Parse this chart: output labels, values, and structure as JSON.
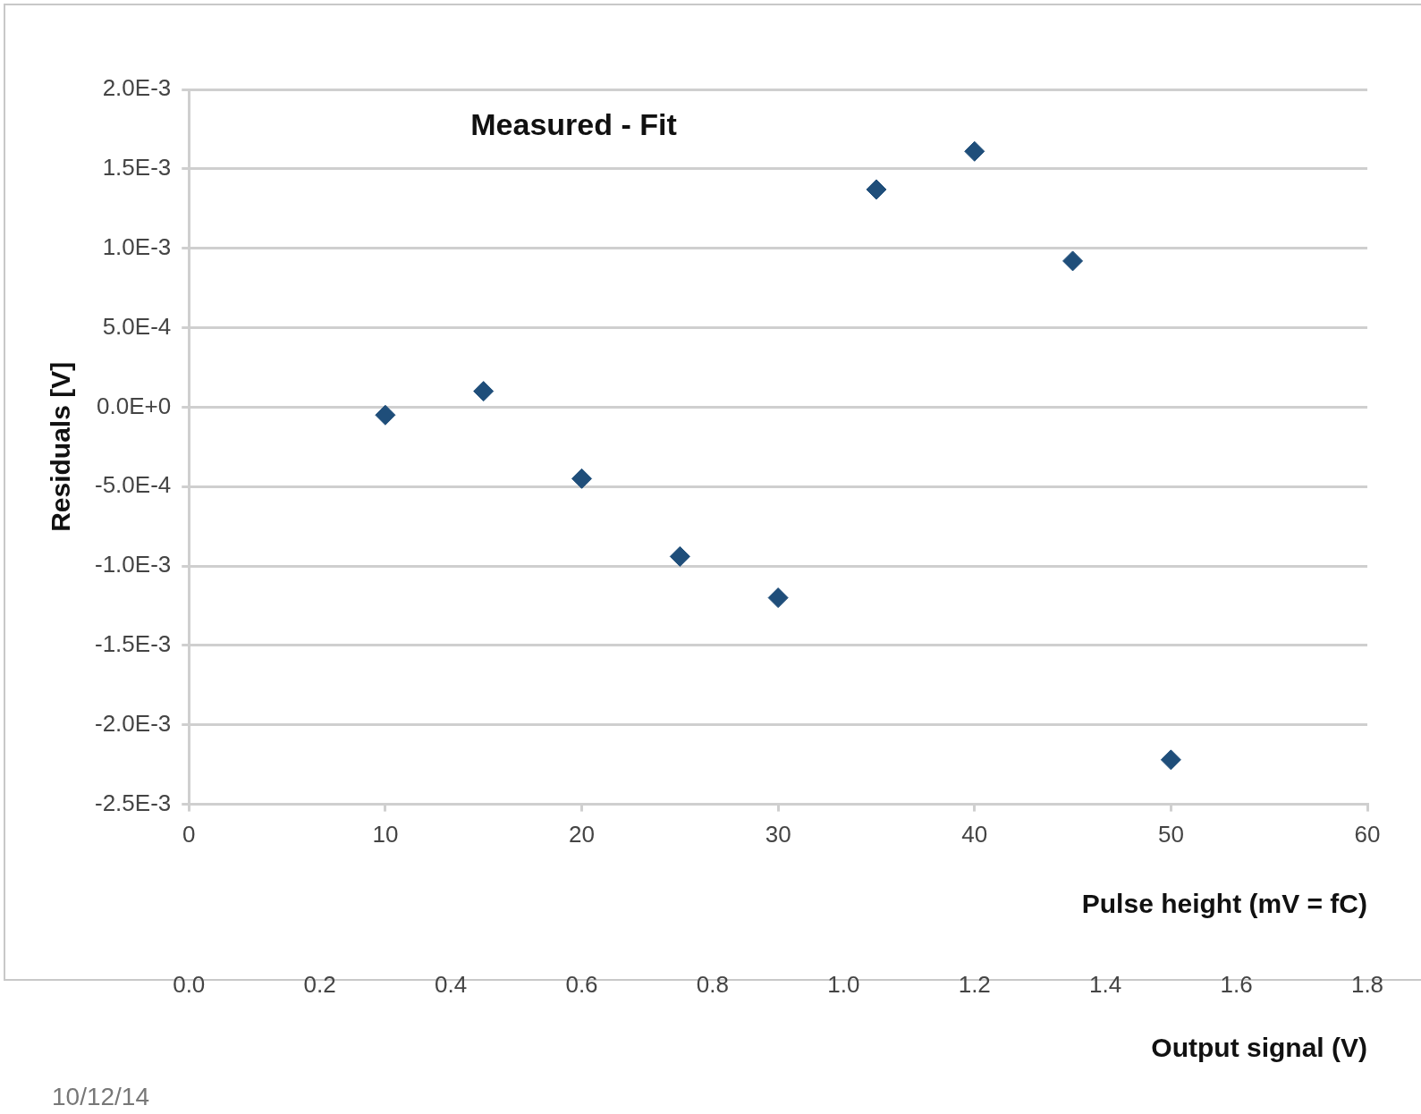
{
  "chart_data": {
    "type": "scatter",
    "title": "Measured - Fit",
    "xlabel": "Pulse height (mV = fC)",
    "ylabel": "Residuals [V]",
    "x2label": "Output signal (V)",
    "annotations": [
      "10/12/14"
    ],
    "x": [
      10,
      15,
      20,
      25,
      30,
      35,
      40,
      45,
      50
    ],
    "series": [
      {
        "color": "#1f4e7a",
        "values": [
          -5e-05,
          0.0001,
          -0.00045,
          -0.00094,
          -0.0012,
          0.00137,
          0.00161,
          0.00092,
          -0.00222
        ]
      }
    ],
    "xlim": [
      0,
      60
    ],
    "xticks": [
      0,
      10,
      20,
      30,
      40,
      50,
      60
    ],
    "x2lim": [
      0,
      1.8
    ],
    "x2ticks": [
      {
        "value": 0,
        "label": "0.0"
      },
      {
        "value": 0.2,
        "label": "0.2"
      },
      {
        "value": 0.4,
        "label": "0.4"
      },
      {
        "value": 0.6,
        "label": "0.6"
      },
      {
        "value": 0.8,
        "label": "0.8"
      },
      {
        "value": 1.0,
        "label": "1.0"
      },
      {
        "value": 1.2,
        "label": "1.2"
      },
      {
        "value": 1.4,
        "label": "1.4"
      },
      {
        "value": 1.6,
        "label": "1.6"
      },
      {
        "value": 1.8,
        "label": "1.8"
      }
    ],
    "ylim": [
      -0.0025,
      0.002
    ],
    "yticks": [
      {
        "value": 0.002,
        "label": "2.0E-3"
      },
      {
        "value": 0.0015,
        "label": "1.5E-3"
      },
      {
        "value": 0.001,
        "label": "1.0E-3"
      },
      {
        "value": 0.0005,
        "label": "5.0E-4"
      },
      {
        "value": 0,
        "label": "0.0E+0"
      },
      {
        "value": -0.0005,
        "label": "-5.0E-4"
      },
      {
        "value": -0.001,
        "label": "-1.0E-3"
      },
      {
        "value": -0.0015,
        "label": "-1.5E-3"
      },
      {
        "value": -0.002,
        "label": "-2.0E-3"
      },
      {
        "value": -0.0025,
        "label": "-2.5E-3"
      }
    ],
    "grid": "y",
    "marker": "diamond",
    "legend": false
  }
}
